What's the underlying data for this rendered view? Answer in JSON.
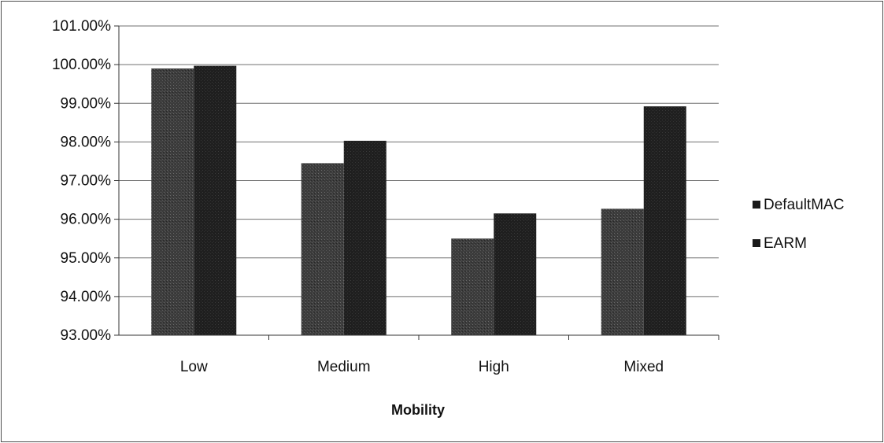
{
  "chart_data": {
    "type": "bar",
    "title": "",
    "xlabel": "Mobility",
    "ylabel": "",
    "categories": [
      "Low",
      "Medium",
      "High",
      "Mixed"
    ],
    "series": [
      {
        "name": "DefaultMAC",
        "values": [
          99.9,
          97.45,
          95.5,
          96.27
        ],
        "color": "#3a3a3a"
      },
      {
        "name": "EARM",
        "values": [
          99.97,
          98.03,
          96.15,
          98.92
        ],
        "color": "#1a1a1a"
      }
    ],
    "ylim": [
      93,
      101
    ],
    "yticks": [
      "93.00%",
      "94.00%",
      "95.00%",
      "96.00%",
      "97.00%",
      "98.00%",
      "99.00%",
      "100.00%",
      "101.00%"
    ],
    "grid": true,
    "legend_position": "right"
  }
}
